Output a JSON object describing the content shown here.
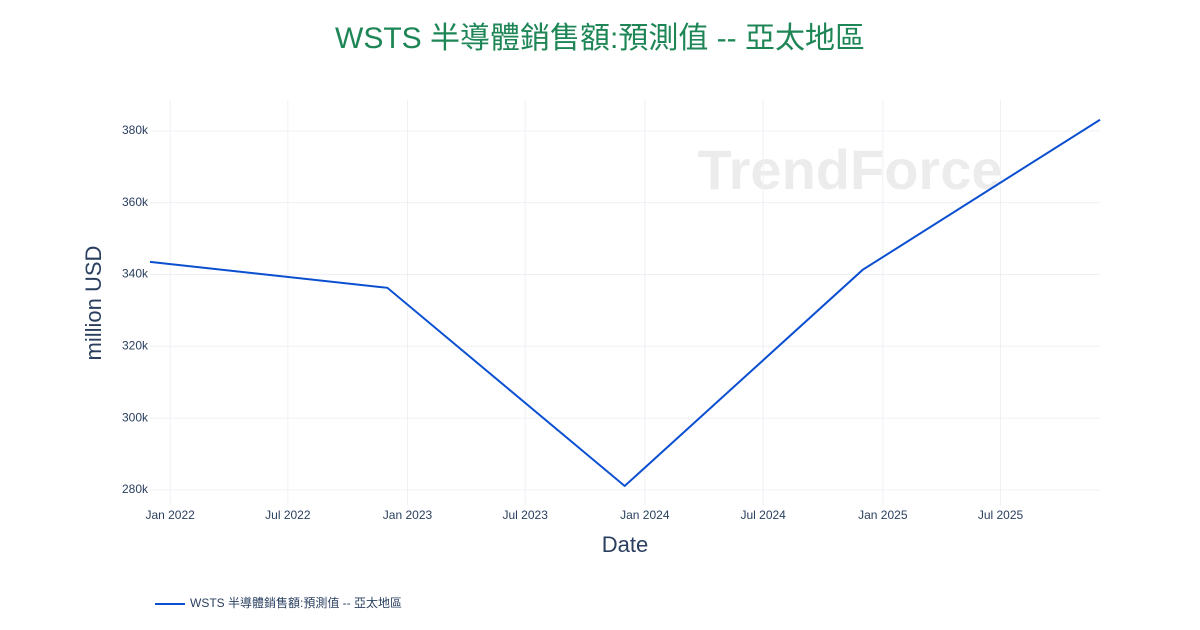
{
  "chart_data": {
    "type": "line",
    "title": "WSTS 半導體銷售額:預測值 -- 亞太地區",
    "watermark": "TrendForce",
    "x_label": "Date",
    "y_label": "million USD",
    "x": [
      "2021-12",
      "2022-12",
      "2023-12",
      "2024-12",
      "2025-12"
    ],
    "series": [
      {
        "name": "WSTS 半導體銷售額:預測值 -- 亞太地區",
        "color": "#0b4fd1",
        "values": [
          343500,
          336300,
          281100,
          341300,
          383100
        ]
      }
    ],
    "xlim": [
      "2021-12",
      "2025-12"
    ],
    "xticks": [
      {
        "value": "2022-01",
        "label": "Jan 2022"
      },
      {
        "value": "2022-07",
        "label": "Jul 2022"
      },
      {
        "value": "2023-01",
        "label": "Jan 2023"
      },
      {
        "value": "2023-07",
        "label": "Jul 2023"
      },
      {
        "value": "2024-01",
        "label": "Jan 2024"
      },
      {
        "value": "2024-07",
        "label": "Jul 2024"
      },
      {
        "value": "2025-01",
        "label": "Jan 2025"
      },
      {
        "value": "2025-07",
        "label": "Jul 2025"
      }
    ],
    "ylim": [
      275800,
      388600
    ],
    "yticks": [
      {
        "value": 280000,
        "label": "280k"
      },
      {
        "value": 300000,
        "label": "300k"
      },
      {
        "value": 320000,
        "label": "320k"
      },
      {
        "value": 340000,
        "label": "340k"
      },
      {
        "value": 360000,
        "label": "360k"
      },
      {
        "value": 380000,
        "label": "380k"
      }
    ],
    "grid": true,
    "legend": "bottom-left"
  }
}
